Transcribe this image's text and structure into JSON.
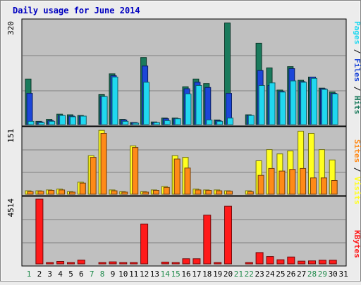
{
  "chart_data": [
    {
      "type": "bar",
      "title": "Daily usage for June 2014",
      "panel": "top",
      "categories": [
        "1",
        "2",
        "3",
        "4",
        "5",
        "6",
        "7",
        "8",
        "9",
        "10",
        "11",
        "12",
        "13",
        "14",
        "15",
        "16",
        "17",
        "18",
        "19",
        "20",
        "21",
        "22",
        "23",
        "24",
        "25",
        "26",
        "27",
        "28",
        "29",
        "30",
        "31"
      ],
      "weekend_days": [
        "1",
        "7",
        "8",
        "14",
        "15",
        "21",
        "22",
        "28",
        "29"
      ],
      "ymax": 320,
      "ymax_label": "320",
      "side_label": [
        "Pages",
        "Files",
        "Hits"
      ],
      "series": [
        {
          "name": "Hits",
          "color": "#1a7a5c",
          "values": [
            140,
            10,
            16,
            32,
            30,
            28,
            0,
            92,
            156,
            16,
            6,
            206,
            8,
            20,
            20,
            116,
            140,
            126,
            14,
            312,
            0,
            30,
            250,
            174,
            106,
            178,
            136,
            146,
            112,
            100,
            0
          ]
        },
        {
          "name": "Files",
          "color": "#1c46d8",
          "values": [
            96,
            8,
            12,
            28,
            26,
            26,
            0,
            86,
            150,
            14,
            6,
            180,
            6,
            18,
            18,
            110,
            130,
            114,
            12,
            96,
            0,
            28,
            166,
            120,
            102,
            172,
            132,
            146,
            110,
            96,
            0
          ]
        },
        {
          "name": "Pages",
          "color": "#20d8f0",
          "values": [
            10,
            6,
            10,
            28,
            24,
            26,
            0,
            86,
            146,
            10,
            4,
            130,
            6,
            12,
            18,
            94,
            120,
            14,
            10,
            20,
            0,
            28,
            120,
            128,
            100,
            134,
            130,
            142,
            108,
            94,
            0
          ]
        }
      ]
    },
    {
      "type": "bar",
      "panel": "middle",
      "categories": [
        "1",
        "2",
        "3",
        "4",
        "5",
        "6",
        "7",
        "8",
        "9",
        "10",
        "11",
        "12",
        "13",
        "14",
        "15",
        "16",
        "17",
        "18",
        "19",
        "20",
        "21",
        "22",
        "23",
        "24",
        "25",
        "26",
        "27",
        "28",
        "29",
        "30",
        "31"
      ],
      "ymax": 151,
      "ymax_label": "151",
      "side_label": [
        "Sites",
        "Visits"
      ],
      "series": [
        {
          "name": "Visits",
          "color": "#ffff20",
          "values": [
            8,
            8,
            10,
            12,
            6,
            28,
            90,
            149,
            10,
            6,
            113,
            6,
            10,
            18,
            90,
            86,
            12,
            10,
            10,
            8,
            0,
            8,
            78,
            104,
            94,
            101,
            147,
            142,
            104,
            80,
            0
          ]
        },
        {
          "name": "Sites",
          "color": "#ff8a18",
          "values": [
            6,
            7,
            9,
            10,
            5,
            26,
            86,
            142,
            8,
            5,
            109,
            5,
            9,
            16,
            82,
            61,
            10,
            9,
            8,
            7,
            0,
            6,
            44,
            60,
            54,
            58,
            60,
            38,
            38,
            32,
            0
          ]
        }
      ]
    },
    {
      "type": "bar",
      "panel": "bottom",
      "categories": [
        "1",
        "2",
        "3",
        "4",
        "5",
        "6",
        "7",
        "8",
        "9",
        "10",
        "11",
        "12",
        "13",
        "14",
        "15",
        "16",
        "17",
        "18",
        "19",
        "20",
        "21",
        "22",
        "23",
        "24",
        "25",
        "26",
        "27",
        "28",
        "29",
        "30",
        "31"
      ],
      "ymax": 4514,
      "ymax_label": "4514",
      "side_label": [
        "KBytes"
      ],
      "series": [
        {
          "name": "KBytes",
          "color": "#ff1a1a",
          "values": [
            0,
            4514,
            90,
            170,
            30,
            270,
            0,
            50,
            140,
            60,
            40,
            2780,
            0,
            130,
            60,
            360,
            360,
            3400,
            100,
            4020,
            0,
            10,
            790,
            510,
            290,
            480,
            190,
            210,
            260,
            260,
            0
          ]
        }
      ]
    }
  ],
  "colors": {
    "pages": "#20d8f0",
    "files": "#1c46d8",
    "hits": "#1a7a5c",
    "visits": "#ffff20",
    "sites": "#ff8a18",
    "kbytes": "#ff1a1a",
    "title": "#0000c0",
    "day_weekday": "#000000",
    "day_weekend": "#1e8a4a",
    "plot_bg": "#c0c0c0",
    "page_bg": "#ececec"
  }
}
